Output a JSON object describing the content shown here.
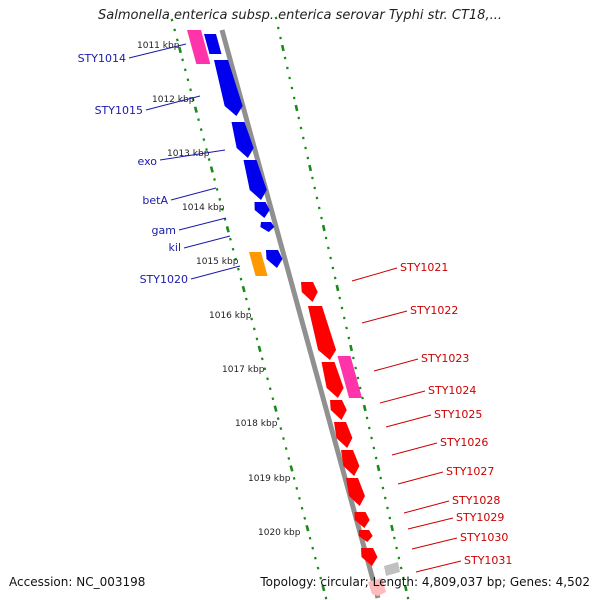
{
  "title": "Salmonella enterica subsp. enterica serovar Typhi str. CT18,...",
  "footer": {
    "accession": "Accession: NC_003198",
    "summary": "Topology: circular; Length: 4,809,037 bp; Genes: 4,502"
  },
  "colors": {
    "backbone": "#909090",
    "tick": "#1a8a1a",
    "left_gene": "#0000ee",
    "left_gene_pink": "#ff33aa",
    "left_gene_orange": "#ff9900",
    "right_gene": "#ff0000",
    "right_gene_pink": "#ff33aa",
    "left_label": "#1a1aaa",
    "right_label": "#cc0000"
  },
  "scale_ticks": [
    "1011 kbp",
    "1012 kbp",
    "1013 kbp",
    "1014 kbp",
    "1015 kbp",
    "1016 kbp",
    "1017 kbp",
    "1018 kbp",
    "1019 kbp",
    "1020 kbp"
  ],
  "left_genes": [
    {
      "name": "STY1014",
      "color": "pink"
    },
    {
      "name": "",
      "color": "blue"
    },
    {
      "name": "STY1015",
      "color": "blue"
    },
    {
      "name": "exo",
      "color": "blue"
    },
    {
      "name": "betA",
      "color": "blue"
    },
    {
      "name": "",
      "color": "blue"
    },
    {
      "name": "gam",
      "color": "blue"
    },
    {
      "name": "kil",
      "color": "blue"
    },
    {
      "name": "STY1020",
      "color": "orange"
    }
  ],
  "right_genes": [
    {
      "name": "STY1021",
      "color": "red"
    },
    {
      "name": "STY1022",
      "color": "red"
    },
    {
      "name": "STY1023",
      "color": "pink"
    },
    {
      "name": "STY1024",
      "color": "red"
    },
    {
      "name": "STY1025",
      "color": "red"
    },
    {
      "name": "STY1026",
      "color": "red"
    },
    {
      "name": "STY1027",
      "color": "red"
    },
    {
      "name": "STY1028",
      "color": "red"
    },
    {
      "name": "STY1029",
      "color": "red"
    },
    {
      "name": "STY1030",
      "color": "red"
    },
    {
      "name": "STY1031",
      "color": "red"
    }
  ]
}
